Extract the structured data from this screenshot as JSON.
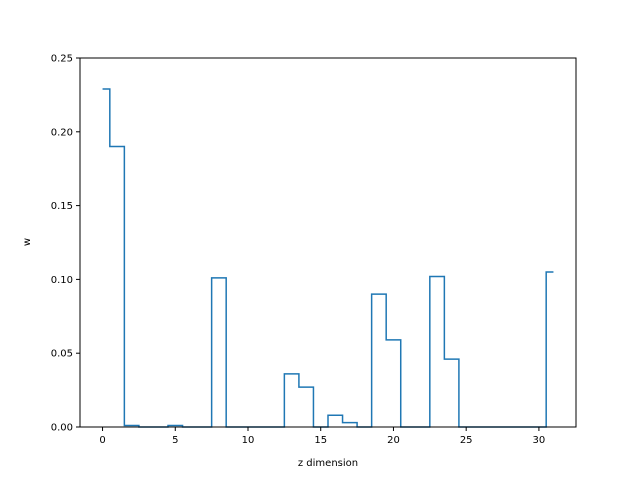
{
  "chart_data": {
    "type": "line",
    "style": "step",
    "title": "",
    "xlabel": "z dimension",
    "ylabel": "w",
    "xlim": [
      -1.55,
      32.55
    ],
    "ylim": [
      0,
      0.25
    ],
    "grid": false,
    "xticks": [
      0,
      5,
      10,
      15,
      20,
      25,
      30
    ],
    "xtick_labels": [
      "0",
      "5",
      "10",
      "15",
      "20",
      "25",
      "30"
    ],
    "yticks": [
      0,
      0.05,
      0.1,
      0.15,
      0.2,
      0.25
    ],
    "ytick_labels": [
      "0.00",
      "0.05",
      "0.10",
      "0.15",
      "0.20",
      "0.25"
    ],
    "series": [
      {
        "color": "#1f77b4",
        "x": [
          0,
          1,
          2,
          3,
          4,
          5,
          6,
          7,
          8,
          9,
          10,
          11,
          12,
          13,
          14,
          15,
          16,
          17,
          18,
          19,
          20,
          21,
          22,
          23,
          24,
          25,
          26,
          27,
          28,
          29,
          30,
          31
        ],
        "y": [
          0.229,
          0.19,
          0.001,
          0.0,
          0.0,
          0.001,
          0.0,
          0.0,
          0.101,
          0.0,
          0.0,
          0.0,
          0.0,
          0.036,
          0.027,
          0.0,
          0.008,
          0.003,
          0.0,
          0.09,
          0.059,
          0.0,
          0.0,
          0.102,
          0.046,
          0.0,
          0.0,
          0.0,
          0.0,
          0.0,
          0.0,
          0.105
        ]
      }
    ]
  }
}
